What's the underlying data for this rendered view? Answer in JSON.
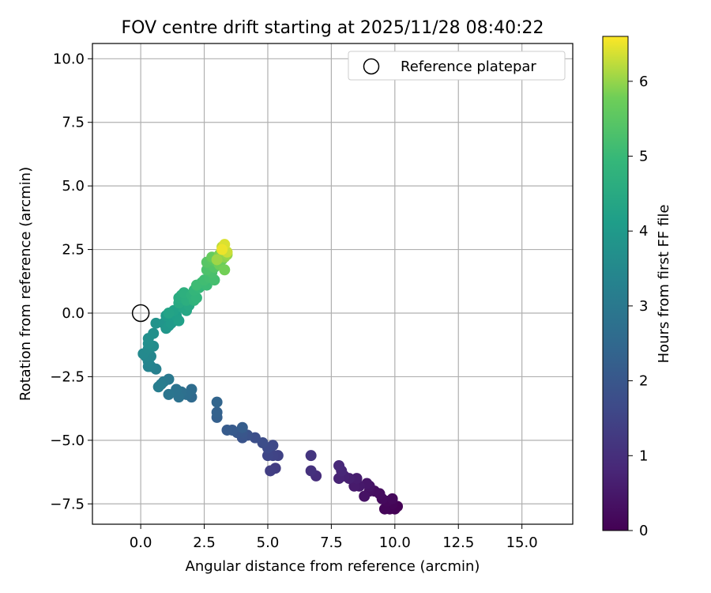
{
  "chart_data": {
    "type": "scatter",
    "title": "FOV centre drift starting at 2025/11/28 08:40:22",
    "xlabel": "Angular distance from reference (arcmin)",
    "ylabel": "Rotation from reference (arcmin)",
    "xlim": [
      -1.9,
      17.0
    ],
    "ylim": [
      -8.3,
      10.6
    ],
    "x_ticks": [
      0.0,
      2.5,
      5.0,
      7.5,
      10.0,
      12.5,
      15.0
    ],
    "y_ticks": [
      -7.5,
      -5.0,
      -2.5,
      0.0,
      2.5,
      5.0,
      7.5,
      10.0
    ],
    "x_tick_labels": [
      "0.0",
      "2.5",
      "5.0",
      "7.5",
      "10.0",
      "12.5",
      "15.0"
    ],
    "y_tick_labels": [
      "−7.5",
      "−5.0",
      "−2.5",
      "0.0",
      "2.5",
      "5.0",
      "7.5",
      "10.0"
    ],
    "grid": true,
    "legend": {
      "position": "top-right",
      "entries": [
        "Reference platepar"
      ]
    },
    "reference_point": {
      "name": "Reference platepar",
      "x": 0.0,
      "y": 0.0
    },
    "colorbar": {
      "label": "Hours from first FF file",
      "range": [
        0,
        6.6
      ],
      "ticks": [
        0,
        1,
        2,
        3,
        4,
        5,
        6
      ],
      "tick_labels": [
        "0",
        "1",
        "2",
        "3",
        "4",
        "5",
        "6"
      ],
      "colormap": "viridis"
    },
    "points": [
      {
        "x": 10.0,
        "y": -7.7,
        "t": 0.0
      },
      {
        "x": 10.1,
        "y": -7.6,
        "t": 0.02
      },
      {
        "x": 9.8,
        "y": -7.7,
        "t": 0.05
      },
      {
        "x": 9.9,
        "y": -7.5,
        "t": 0.08
      },
      {
        "x": 9.6,
        "y": -7.7,
        "t": 0.1
      },
      {
        "x": 9.7,
        "y": -7.4,
        "t": 0.13
      },
      {
        "x": 9.9,
        "y": -7.3,
        "t": 0.16
      },
      {
        "x": 9.5,
        "y": -7.3,
        "t": 0.2
      },
      {
        "x": 9.4,
        "y": -7.1,
        "t": 0.24
      },
      {
        "x": 9.2,
        "y": -7.0,
        "t": 0.28
      },
      {
        "x": 9.0,
        "y": -7.0,
        "t": 0.32
      },
      {
        "x": 8.8,
        "y": -7.2,
        "t": 0.36
      },
      {
        "x": 9.0,
        "y": -6.8,
        "t": 0.4
      },
      {
        "x": 8.9,
        "y": -6.7,
        "t": 0.45
      },
      {
        "x": 8.6,
        "y": -6.8,
        "t": 0.5
      },
      {
        "x": 8.4,
        "y": -6.8,
        "t": 0.55
      },
      {
        "x": 8.5,
        "y": -6.5,
        "t": 0.6
      },
      {
        "x": 8.2,
        "y": -6.5,
        "t": 0.65
      },
      {
        "x": 8.0,
        "y": -6.4,
        "t": 0.7
      },
      {
        "x": 7.8,
        "y": -6.5,
        "t": 0.75
      },
      {
        "x": 7.9,
        "y": -6.2,
        "t": 0.8
      },
      {
        "x": 7.8,
        "y": -6.0,
        "t": 0.86
      },
      {
        "x": 6.9,
        "y": -6.4,
        "t": 0.95
      },
      {
        "x": 6.7,
        "y": -6.2,
        "t": 1.05
      },
      {
        "x": 6.7,
        "y": -5.6,
        "t": 1.15
      },
      {
        "x": 5.3,
        "y": -6.1,
        "t": 1.3
      },
      {
        "x": 5.1,
        "y": -6.2,
        "t": 1.35
      },
      {
        "x": 5.4,
        "y": -5.6,
        "t": 1.45
      },
      {
        "x": 5.2,
        "y": -5.6,
        "t": 1.5
      },
      {
        "x": 5.0,
        "y": -5.6,
        "t": 1.55
      },
      {
        "x": 5.2,
        "y": -5.2,
        "t": 1.62
      },
      {
        "x": 5.0,
        "y": -5.3,
        "t": 1.66
      },
      {
        "x": 4.8,
        "y": -5.1,
        "t": 1.72
      },
      {
        "x": 4.5,
        "y": -4.9,
        "t": 1.8
      },
      {
        "x": 4.2,
        "y": -4.8,
        "t": 1.87
      },
      {
        "x": 4.0,
        "y": -4.9,
        "t": 1.92
      },
      {
        "x": 4.0,
        "y": -4.7,
        "t": 1.97
      },
      {
        "x": 3.8,
        "y": -4.7,
        "t": 2.02
      },
      {
        "x": 3.6,
        "y": -4.6,
        "t": 2.08
      },
      {
        "x": 3.4,
        "y": -4.6,
        "t": 2.12
      },
      {
        "x": 4.0,
        "y": -4.5,
        "t": 2.16
      },
      {
        "x": 3.0,
        "y": -4.1,
        "t": 2.25
      },
      {
        "x": 3.0,
        "y": -3.9,
        "t": 2.3
      },
      {
        "x": 3.0,
        "y": -3.5,
        "t": 2.38
      },
      {
        "x": 2.0,
        "y": -3.3,
        "t": 2.55
      },
      {
        "x": 2.0,
        "y": -3.0,
        "t": 2.62
      },
      {
        "x": 1.8,
        "y": -3.2,
        "t": 2.67
      },
      {
        "x": 1.6,
        "y": -3.1,
        "t": 2.72
      },
      {
        "x": 1.5,
        "y": -3.3,
        "t": 2.78
      },
      {
        "x": 1.4,
        "y": -3.0,
        "t": 2.83
      },
      {
        "x": 1.1,
        "y": -3.2,
        "t": 2.9
      },
      {
        "x": 1.1,
        "y": -2.6,
        "t": 2.98
      },
      {
        "x": 0.9,
        "y": -2.7,
        "t": 3.05
      },
      {
        "x": 0.8,
        "y": -2.8,
        "t": 3.1
      },
      {
        "x": 0.7,
        "y": -2.9,
        "t": 3.15
      },
      {
        "x": 0.6,
        "y": -2.2,
        "t": 3.25
      },
      {
        "x": 0.4,
        "y": -2.1,
        "t": 3.3
      },
      {
        "x": 0.3,
        "y": -2.1,
        "t": 3.34
      },
      {
        "x": 0.3,
        "y": -1.9,
        "t": 3.38
      },
      {
        "x": 0.4,
        "y": -1.7,
        "t": 3.42
      },
      {
        "x": 0.2,
        "y": -1.7,
        "t": 3.46
      },
      {
        "x": 0.1,
        "y": -1.6,
        "t": 3.5
      },
      {
        "x": 0.3,
        "y": -1.4,
        "t": 3.55
      },
      {
        "x": 0.5,
        "y": -1.3,
        "t": 3.6
      },
      {
        "x": 0.3,
        "y": -1.2,
        "t": 3.64
      },
      {
        "x": 0.3,
        "y": -1.0,
        "t": 3.68
      },
      {
        "x": 0.5,
        "y": -0.8,
        "t": 3.72
      },
      {
        "x": 0.6,
        "y": -0.4,
        "t": 3.8
      },
      {
        "x": 0.9,
        "y": -0.4,
        "t": 3.86
      },
      {
        "x": 1.0,
        "y": -0.6,
        "t": 3.9
      },
      {
        "x": 1.1,
        "y": -0.5,
        "t": 3.95
      },
      {
        "x": 1.2,
        "y": -0.4,
        "t": 4.0
      },
      {
        "x": 1.0,
        "y": -0.1,
        "t": 4.05
      },
      {
        "x": 1.2,
        "y": -0.1,
        "t": 4.1
      },
      {
        "x": 1.4,
        "y": -0.1,
        "t": 4.15
      },
      {
        "x": 1.5,
        "y": -0.3,
        "t": 4.2
      },
      {
        "x": 1.3,
        "y": 0.1,
        "t": 4.25
      },
      {
        "x": 1.1,
        "y": 0.0,
        "t": 4.3
      },
      {
        "x": 1.7,
        "y": 0.2,
        "t": 4.35
      },
      {
        "x": 1.8,
        "y": 0.1,
        "t": 4.4
      },
      {
        "x": 1.9,
        "y": 0.3,
        "t": 4.45
      },
      {
        "x": 1.5,
        "y": 0.4,
        "t": 4.5
      },
      {
        "x": 1.5,
        "y": 0.6,
        "t": 4.55
      },
      {
        "x": 1.6,
        "y": 0.7,
        "t": 4.6
      },
      {
        "x": 1.8,
        "y": 0.5,
        "t": 4.65
      },
      {
        "x": 1.7,
        "y": 0.8,
        "t": 4.7
      },
      {
        "x": 2.0,
        "y": 0.7,
        "t": 4.75
      },
      {
        "x": 2.1,
        "y": 0.5,
        "t": 4.8
      },
      {
        "x": 2.2,
        "y": 0.6,
        "t": 4.85
      },
      {
        "x": 2.1,
        "y": 0.9,
        "t": 4.9
      },
      {
        "x": 2.3,
        "y": 1.0,
        "t": 4.95
      },
      {
        "x": 2.4,
        "y": 1.2,
        "t": 5.0
      },
      {
        "x": 2.6,
        "y": 1.1,
        "t": 5.05
      },
      {
        "x": 2.2,
        "y": 1.1,
        "t": 5.08
      },
      {
        "x": 2.5,
        "y": 1.3,
        "t": 5.12
      },
      {
        "x": 2.7,
        "y": 1.4,
        "t": 5.16
      },
      {
        "x": 2.9,
        "y": 1.3,
        "t": 5.2
      },
      {
        "x": 2.8,
        "y": 1.6,
        "t": 5.25
      },
      {
        "x": 2.6,
        "y": 1.7,
        "t": 5.3
      },
      {
        "x": 2.7,
        "y": 1.9,
        "t": 5.35
      },
      {
        "x": 2.9,
        "y": 1.8,
        "t": 5.4
      },
      {
        "x": 2.6,
        "y": 2.0,
        "t": 5.45
      },
      {
        "x": 2.8,
        "y": 2.1,
        "t": 5.5
      },
      {
        "x": 3.0,
        "y": 2.0,
        "t": 5.55
      },
      {
        "x": 3.0,
        "y": 2.2,
        "t": 5.6
      },
      {
        "x": 2.8,
        "y": 2.2,
        "t": 5.65
      },
      {
        "x": 3.2,
        "y": 2.1,
        "t": 5.7
      },
      {
        "x": 3.1,
        "y": 1.9,
        "t": 5.75
      },
      {
        "x": 3.3,
        "y": 1.7,
        "t": 5.8
      },
      {
        "x": 3.1,
        "y": 2.3,
        "t": 5.85
      },
      {
        "x": 3.2,
        "y": 2.4,
        "t": 5.9
      },
      {
        "x": 3.3,
        "y": 2.2,
        "t": 5.95
      },
      {
        "x": 3.4,
        "y": 2.3,
        "t": 6.0
      },
      {
        "x": 3.0,
        "y": 2.1,
        "t": 6.05
      },
      {
        "x": 3.3,
        "y": 2.5,
        "t": 6.1
      },
      {
        "x": 3.2,
        "y": 2.6,
        "t": 6.2
      },
      {
        "x": 3.4,
        "y": 2.4,
        "t": 6.3
      },
      {
        "x": 3.3,
        "y": 2.7,
        "t": 6.4
      },
      {
        "x": 3.2,
        "y": 2.5,
        "t": 6.5
      }
    ]
  }
}
